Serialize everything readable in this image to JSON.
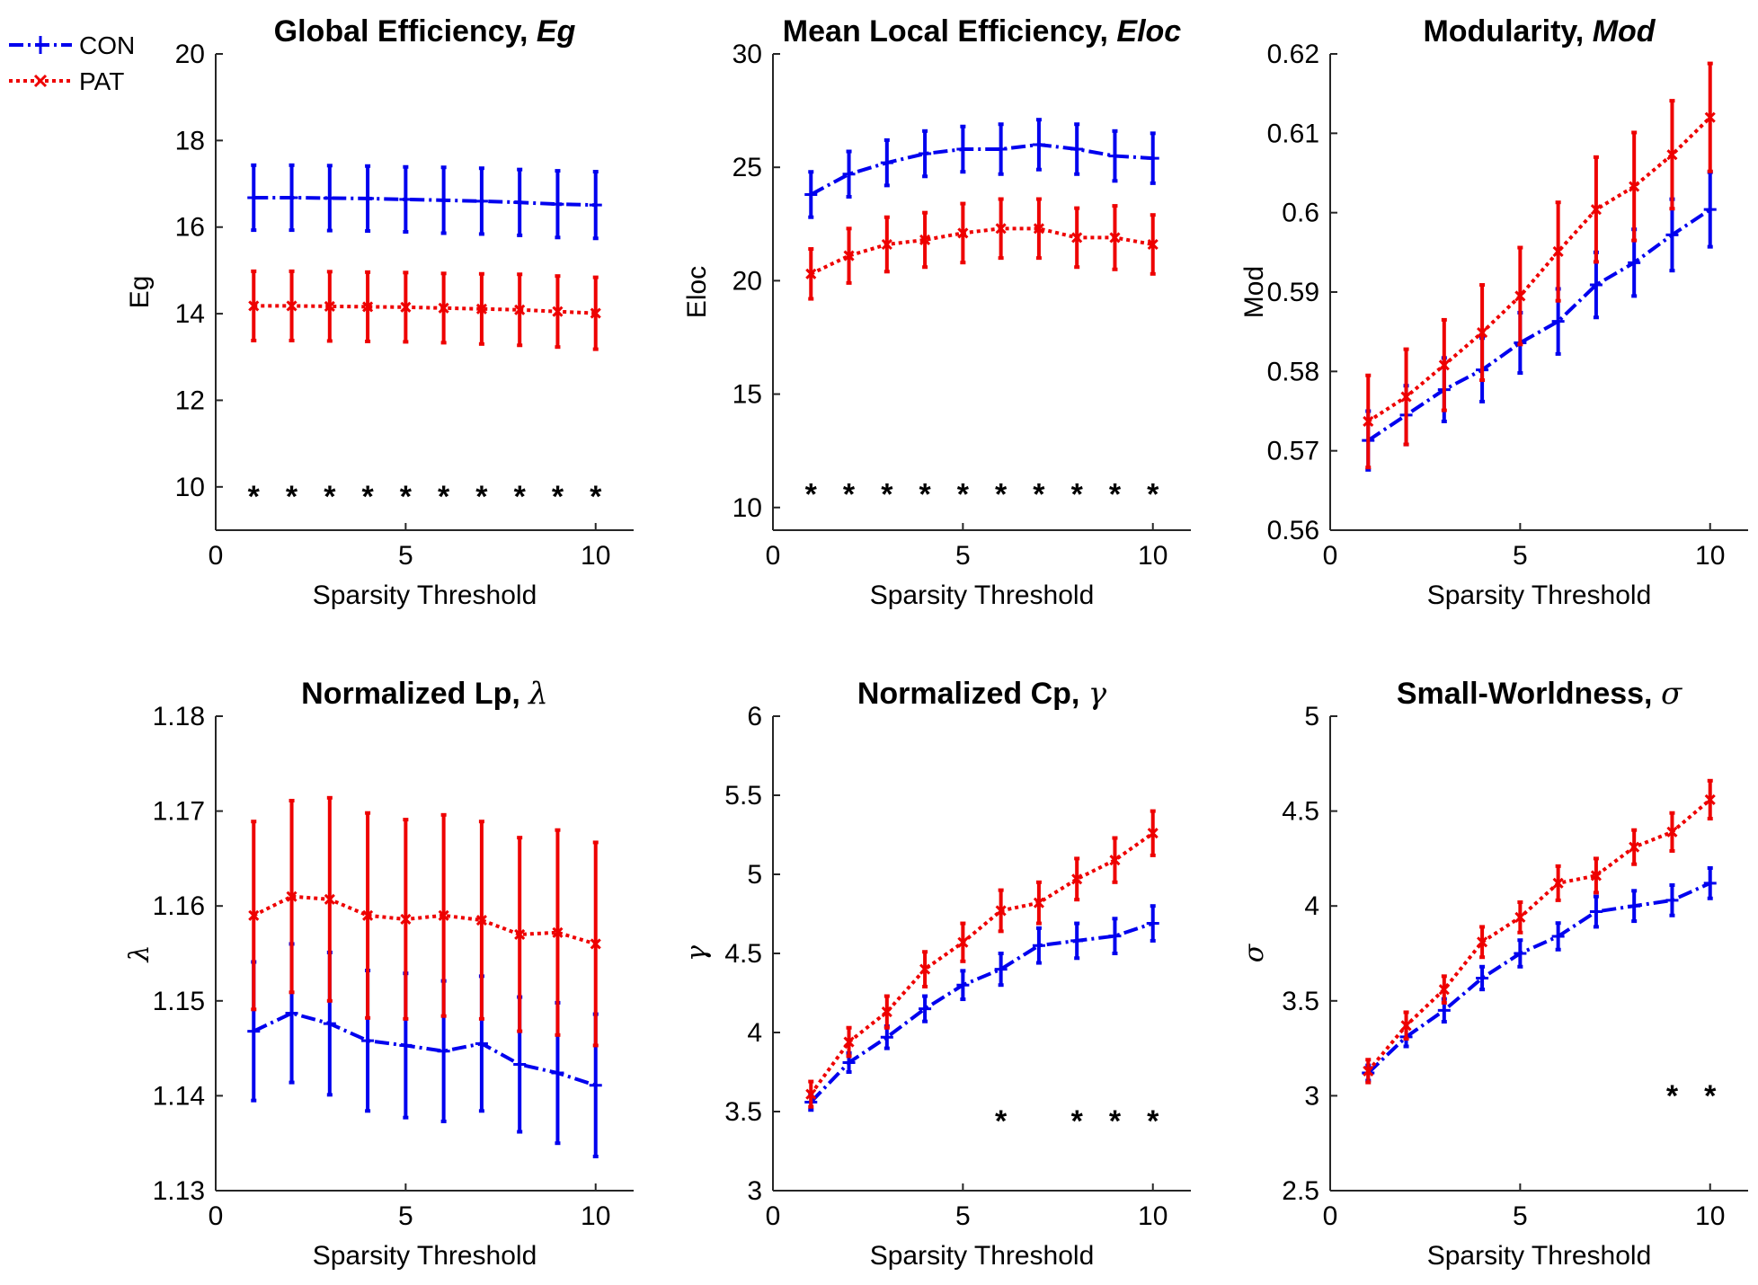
{
  "legend": [
    {
      "name": "CON",
      "color": "#0000ee",
      "style": "dashdot",
      "marker": "+"
    },
    {
      "name": "PAT",
      "color": "#ee0000",
      "style": "dotted",
      "marker": "x"
    }
  ],
  "chart_data": [
    {
      "type": "line",
      "title_plain": "Global Efficiency, ",
      "title_symbol": "Eg",
      "xlabel": "Sparsity Threshold",
      "ylabel": "Eg",
      "xlim": [
        0,
        11
      ],
      "ylim": [
        9,
        20
      ],
      "xticks": [
        0,
        5,
        10
      ],
      "yticks": [
        10,
        12,
        14,
        16,
        18,
        20
      ],
      "x": [
        1,
        2,
        3,
        4,
        5,
        6,
        7,
        8,
        9,
        10
      ],
      "series": [
        {
          "name": "CON",
          "values": [
            16.68,
            16.68,
            16.67,
            16.66,
            16.64,
            16.62,
            16.6,
            16.57,
            16.53,
            16.51
          ],
          "err": [
            0.75,
            0.75,
            0.75,
            0.75,
            0.75,
            0.76,
            0.76,
            0.76,
            0.77,
            0.77
          ]
        },
        {
          "name": "PAT",
          "values": [
            14.18,
            14.18,
            14.17,
            14.16,
            14.15,
            14.13,
            14.11,
            14.09,
            14.05,
            14.01
          ],
          "err": [
            0.8,
            0.8,
            0.8,
            0.8,
            0.8,
            0.8,
            0.81,
            0.82,
            0.82,
            0.83
          ]
        }
      ],
      "significance": {
        "x": [
          1,
          2,
          3,
          4,
          5,
          6,
          7,
          8,
          9,
          10
        ],
        "y": 10,
        "label": "*"
      }
    },
    {
      "type": "line",
      "title_plain": "Mean Local Efficiency, ",
      "title_symbol": "Eloc",
      "xlabel": "Sparsity Threshold",
      "ylabel": "Eloc",
      "xlim": [
        0,
        11
      ],
      "ylim": [
        9,
        30
      ],
      "xticks": [
        0,
        5,
        10
      ],
      "yticks": [
        10,
        15,
        20,
        25,
        30
      ],
      "x": [
        1,
        2,
        3,
        4,
        5,
        6,
        7,
        8,
        9,
        10
      ],
      "series": [
        {
          "name": "CON",
          "values": [
            23.8,
            24.7,
            25.2,
            25.6,
            25.8,
            25.8,
            26.0,
            25.8,
            25.5,
            25.4
          ],
          "err": [
            1.0,
            1.0,
            1.0,
            1.0,
            1.0,
            1.1,
            1.1,
            1.1,
            1.1,
            1.1
          ]
        },
        {
          "name": "PAT",
          "values": [
            20.3,
            21.1,
            21.6,
            21.8,
            22.1,
            22.3,
            22.3,
            21.9,
            21.9,
            21.6
          ],
          "err": [
            1.1,
            1.2,
            1.2,
            1.2,
            1.3,
            1.3,
            1.3,
            1.3,
            1.4,
            1.3
          ]
        }
      ],
      "significance": {
        "x": [
          1,
          2,
          3,
          4,
          5,
          6,
          7,
          8,
          9,
          10
        ],
        "y": 11,
        "label": "*"
      }
    },
    {
      "type": "line",
      "title_plain": "Modularity, ",
      "title_symbol": "Mod",
      "xlabel": "Sparsity Threshold",
      "ylabel": "Mod",
      "xlim": [
        0,
        11
      ],
      "ylim": [
        0.56,
        0.62
      ],
      "xticks": [
        0,
        5,
        10
      ],
      "yticks": [
        0.56,
        0.57,
        0.58,
        0.59,
        0.6,
        0.61,
        0.62
      ],
      "x": [
        1,
        2,
        3,
        4,
        5,
        6,
        7,
        8,
        9,
        10
      ],
      "series": [
        {
          "name": "CON",
          "values": [
            0.5713,
            0.5745,
            0.5777,
            0.5802,
            0.5836,
            0.5863,
            0.5909,
            0.5937,
            0.5972,
            0.6004
          ],
          "err": [
            0.0037,
            0.0037,
            0.004,
            0.004,
            0.0038,
            0.0041,
            0.0041,
            0.0042,
            0.0045,
            0.0047
          ]
        },
        {
          "name": "PAT",
          "values": [
            0.5737,
            0.5768,
            0.5808,
            0.5849,
            0.5895,
            0.5951,
            0.6004,
            0.6033,
            0.6073,
            0.612
          ],
          "err": [
            0.0058,
            0.006,
            0.0057,
            0.006,
            0.0061,
            0.0062,
            0.0066,
            0.0068,
            0.0068,
            0.0068
          ]
        }
      ]
    },
    {
      "type": "line",
      "title_plain": "Normalized Lp, ",
      "title_symbol": "λ",
      "xlabel": "Sparsity Threshold",
      "ylabel": "λ",
      "xlim": [
        0,
        11
      ],
      "ylim": [
        1.13,
        1.18
      ],
      "xticks": [
        0,
        5,
        10
      ],
      "yticks": [
        1.13,
        1.14,
        1.15,
        1.16,
        1.17,
        1.18
      ],
      "x": [
        1,
        2,
        3,
        4,
        5,
        6,
        7,
        8,
        9,
        10
      ],
      "series": [
        {
          "name": "CON",
          "values": [
            1.1468,
            1.1487,
            1.1476,
            1.1458,
            1.1453,
            1.1447,
            1.1455,
            1.1433,
            1.1424,
            1.1411
          ],
          "err": [
            0.0073,
            0.0073,
            0.0075,
            0.0074,
            0.0076,
            0.0074,
            0.0071,
            0.0071,
            0.0074,
            0.0075
          ]
        },
        {
          "name": "PAT",
          "values": [
            1.159,
            1.161,
            1.1607,
            1.159,
            1.1586,
            1.159,
            1.1585,
            1.157,
            1.1572,
            1.156
          ],
          "err": [
            0.0099,
            0.0101,
            0.0107,
            0.0108,
            0.0105,
            0.0106,
            0.0104,
            0.0102,
            0.0108,
            0.0107
          ]
        }
      ]
    },
    {
      "type": "line",
      "title_plain": "Normalized Cp, ",
      "title_symbol": "γ",
      "xlabel": "Sparsity Threshold",
      "ylabel": "γ",
      "xlim": [
        0,
        11
      ],
      "ylim": [
        3,
        6
      ],
      "xticks": [
        0,
        5,
        10
      ],
      "yticks": [
        3,
        3.5,
        4,
        4.5,
        5,
        5.5,
        6
      ],
      "x": [
        1,
        2,
        3,
        4,
        5,
        6,
        7,
        8,
        9,
        10
      ],
      "series": [
        {
          "name": "CON",
          "values": [
            3.56,
            3.81,
            3.97,
            4.15,
            4.3,
            4.4,
            4.55,
            4.58,
            4.61,
            4.69
          ],
          "err": [
            0.05,
            0.06,
            0.07,
            0.08,
            0.09,
            0.1,
            0.11,
            0.11,
            0.11,
            0.11
          ]
        },
        {
          "name": "PAT",
          "values": [
            3.61,
            3.94,
            4.13,
            4.4,
            4.57,
            4.77,
            4.82,
            4.97,
            5.09,
            5.26
          ],
          "err": [
            0.08,
            0.09,
            0.1,
            0.11,
            0.12,
            0.13,
            0.13,
            0.13,
            0.14,
            0.14
          ]
        }
      ],
      "significance": {
        "x": [
          6,
          8,
          9,
          10
        ],
        "y": 3.5,
        "label": "*"
      }
    },
    {
      "type": "line",
      "title_plain": "Small-Worldness, ",
      "title_symbol": "σ",
      "xlabel": "Sparsity Threshold",
      "ylabel": "σ",
      "xlim": [
        0,
        11
      ],
      "ylim": [
        2.5,
        5
      ],
      "xticks": [
        0,
        5,
        10
      ],
      "yticks": [
        2.5,
        3,
        3.5,
        4,
        4.5,
        5
      ],
      "x": [
        1,
        2,
        3,
        4,
        5,
        6,
        7,
        8,
        9,
        10
      ],
      "series": [
        {
          "name": "CON",
          "values": [
            3.12,
            3.31,
            3.45,
            3.62,
            3.75,
            3.84,
            3.97,
            4.0,
            4.03,
            4.12
          ],
          "err": [
            0.04,
            0.05,
            0.06,
            0.06,
            0.07,
            0.07,
            0.08,
            0.08,
            0.08,
            0.08
          ]
        },
        {
          "name": "PAT",
          "values": [
            3.13,
            3.37,
            3.56,
            3.81,
            3.94,
            4.12,
            4.16,
            4.31,
            4.39,
            4.56
          ],
          "err": [
            0.06,
            0.07,
            0.07,
            0.08,
            0.08,
            0.09,
            0.09,
            0.09,
            0.1,
            0.1
          ]
        }
      ],
      "significance": {
        "x": [
          9,
          10
        ],
        "y": 3.05,
        "label": "*"
      }
    }
  ]
}
